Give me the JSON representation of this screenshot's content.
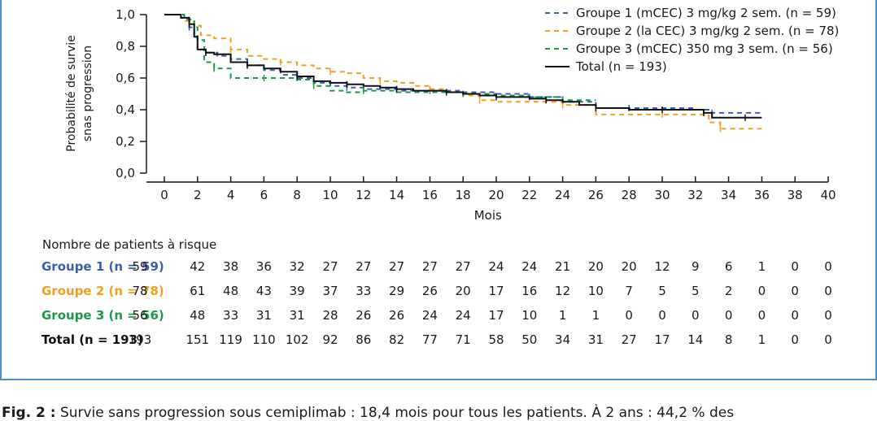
{
  "chart_data": {
    "type": "line",
    "chart_kind": "kaplan-meier",
    "xlabel": "Mois",
    "ylabel_lines": [
      "Probabilité de survie",
      "snas progression"
    ],
    "xlim": [
      0,
      40
    ],
    "ylim": [
      0,
      1
    ],
    "xticks": [
      0,
      2,
      4,
      6,
      8,
      10,
      12,
      14,
      16,
      18,
      20,
      22,
      24,
      26,
      28,
      30,
      32,
      34,
      36,
      38,
      40
    ],
    "yticks": [
      "0,0",
      "0,2",
      "0,4",
      "0,6",
      "0,8",
      "1,0"
    ],
    "ytick_values": [
      0,
      0.2,
      0.4,
      0.6,
      0.8,
      1.0
    ],
    "legend_position": "top-right",
    "series": [
      {
        "name": "Groupe 1 (mCEC) 3 mg/kg 2 sem. (n = 59)",
        "color": "#3b5fb0",
        "dash": "dashed",
        "x": [
          0,
          1.0,
          1.5,
          1.8,
          2.0,
          2.5,
          3.2,
          4.0,
          5.0,
          6.0,
          7.0,
          8.0,
          9.0,
          10.0,
          11.0,
          12.0,
          14.0,
          16.0,
          18.0,
          20.0,
          22.0,
          24.0,
          26.0,
          28.0,
          30.0,
          32.0,
          33.0,
          34.0,
          36.0
        ],
        "y": [
          1.0,
          0.98,
          0.92,
          0.86,
          0.78,
          0.76,
          0.74,
          0.72,
          0.68,
          0.65,
          0.62,
          0.6,
          0.57,
          0.55,
          0.54,
          0.53,
          0.52,
          0.52,
          0.51,
          0.5,
          0.48,
          0.45,
          0.41,
          0.41,
          0.41,
          0.4,
          0.38,
          0.38,
          0.38
        ]
      },
      {
        "name": "Groupe 2 (la CEC) 3 mg/kg 2 sem. (n = 78)",
        "color": "#f0a020",
        "dash": "dashed",
        "x": [
          0,
          1.2,
          1.8,
          2.2,
          3.0,
          4.0,
          5.0,
          6.0,
          7.0,
          8.0,
          9.0,
          10.0,
          11.0,
          12.0,
          13.0,
          14.0,
          15.0,
          16.0,
          17.0,
          18.0,
          19.0,
          20.0,
          22.0,
          24.0,
          26.0,
          28.0,
          30.0,
          32.0,
          32.8,
          33.5,
          35.0,
          36.0
        ],
        "y": [
          1.0,
          0.96,
          0.93,
          0.87,
          0.85,
          0.78,
          0.74,
          0.72,
          0.7,
          0.68,
          0.66,
          0.64,
          0.63,
          0.6,
          0.58,
          0.57,
          0.55,
          0.53,
          0.51,
          0.49,
          0.46,
          0.45,
          0.45,
          0.43,
          0.37,
          0.37,
          0.37,
          0.37,
          0.32,
          0.28,
          0.28,
          0.28
        ]
      },
      {
        "name": "Groupe 3 (mCEC) 350 mg 3 sem. (n = 56)",
        "color": "#1a9a4a",
        "dash": "dashed",
        "x": [
          0,
          1.2,
          1.8,
          2.0,
          2.4,
          3.0,
          4.0,
          5.0,
          6.0,
          7.0,
          8.0,
          9.0,
          10.0,
          11.0,
          12.0,
          14.0,
          16.0,
          18.0,
          20.0,
          22.0,
          24.0,
          26.0
        ],
        "y": [
          1.0,
          0.97,
          0.92,
          0.84,
          0.7,
          0.66,
          0.6,
          0.6,
          0.6,
          0.6,
          0.59,
          0.55,
          0.52,
          0.51,
          0.52,
          0.51,
          0.51,
          0.5,
          0.49,
          0.48,
          0.46,
          0.46
        ]
      },
      {
        "name": "Total (n = 193)",
        "color": "#111111",
        "dash": "solid",
        "x": [
          0,
          1.0,
          1.5,
          1.8,
          2.0,
          2.5,
          3.0,
          4.0,
          5.0,
          6.0,
          7.0,
          8.0,
          9.0,
          10.0,
          11.0,
          12.0,
          13.0,
          14.0,
          15.0,
          16.0,
          17.0,
          18.0,
          19.0,
          20.0,
          21.0,
          22.0,
          23.0,
          24.0,
          25.0,
          26.0,
          27.0,
          28.0,
          30.0,
          31.0,
          32.0,
          32.5,
          33.0,
          34.0,
          35.0,
          36.0
        ],
        "y": [
          1.0,
          0.98,
          0.94,
          0.86,
          0.78,
          0.76,
          0.75,
          0.7,
          0.68,
          0.66,
          0.64,
          0.61,
          0.58,
          0.57,
          0.56,
          0.55,
          0.54,
          0.53,
          0.52,
          0.52,
          0.51,
          0.5,
          0.49,
          0.48,
          0.48,
          0.47,
          0.46,
          0.45,
          0.43,
          0.41,
          0.41,
          0.4,
          0.4,
          0.4,
          0.4,
          0.38,
          0.35,
          0.35,
          0.35,
          0.35
        ]
      }
    ]
  },
  "risk_table": {
    "title": "Nombre de patients à risque",
    "rows": [
      {
        "label": "Groupe 1 (n = 59)",
        "color": "#3b5fb0",
        "values": [
          "59",
          "42",
          "38",
          "36",
          "32",
          "27",
          "27",
          "27",
          "27",
          "27",
          "24",
          "24",
          "21",
          "20",
          "20",
          "12",
          "9",
          "6",
          "1",
          "0",
          "0"
        ]
      },
      {
        "label": "Groupe 2 (n = 78)",
        "color": "#f0a020",
        "values": [
          "78",
          "61",
          "48",
          "43",
          "39",
          "37",
          "33",
          "29",
          "26",
          "20",
          "17",
          "16",
          "12",
          "10",
          "7",
          "5",
          "5",
          "2",
          "0",
          "0",
          "0"
        ]
      },
      {
        "label": "Groupe 3 (n = 56)",
        "color": "#1a9a4a",
        "values": [
          "56",
          "48",
          "33",
          "31",
          "31",
          "28",
          "26",
          "26",
          "24",
          "24",
          "17",
          "10",
          "1",
          "1",
          "0",
          "0",
          "0",
          "0",
          "0",
          "0",
          "0"
        ]
      },
      {
        "label": "Total (n = 193)",
        "color": "#111111",
        "values": [
          "193",
          "151",
          "119",
          "110",
          "102",
          "92",
          "86",
          "82",
          "77",
          "71",
          "58",
          "50",
          "34",
          "31",
          "27",
          "17",
          "14",
          "8",
          "1",
          "0",
          "0"
        ]
      }
    ]
  },
  "caption": {
    "label": "Fig. 2 :",
    "text": "Survie sans progression sous cemiplimab : 18,4 mois pour tous les patients. À 2 ans : 44,2 % des"
  }
}
